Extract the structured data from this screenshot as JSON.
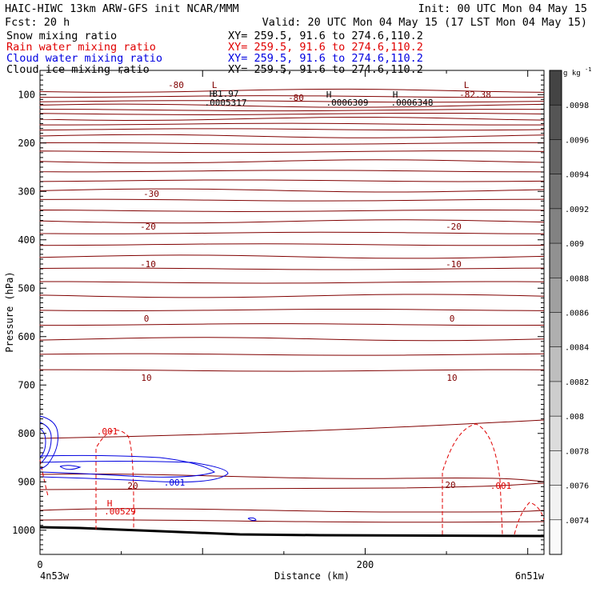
{
  "header": {
    "line1_left": "HAIC-HIWC 13km ARW-GFS init   NCAR/MMM",
    "line1_right": "Init: 00 UTC Mon 04 May 15",
    "line2_left": "Fcst:   20 h",
    "line2_right": "Valid: 20 UTC Mon 04 May 15 (17 LST Mon 04 May 15)",
    "fields": [
      {
        "name": "Snow mixing ratio",
        "xy": "XY= 259.5, 91.6 to 274.6,110.2",
        "color": "#000000"
      },
      {
        "name": "Rain water mixing ratio",
        "xy": "XY= 259.5, 91.6 to 274.6,110.2",
        "color": "#e00000"
      },
      {
        "name": "Cloud water mixing ratio",
        "xy": "XY= 259.5, 91.6 to 274.6,110.2",
        "color": "#0000e0"
      },
      {
        "name": "Cloud ice mixing ratio",
        "xy": "XY= 259.5, 91.6 to 274.6,110.2",
        "color": "#000000"
      }
    ]
  },
  "chart_data": {
    "type": "contour",
    "xlabel": "Distance (km)",
    "ylabel": "Pressure (hPa)",
    "x_ticks": [
      "0",
      "200"
    ],
    "y_ticks": [
      "100",
      "200",
      "300",
      "400",
      "500",
      "600",
      "700",
      "800",
      "900",
      "1000"
    ],
    "xlim": [
      0,
      310
    ],
    "ylim": [
      1050,
      50
    ],
    "left_location": "4n53w",
    "right_location": "6n51w",
    "colorbar": {
      "unit": "g kg",
      "unit_exp": "-1",
      "labels": [
        ".0098",
        ".0096",
        ".0094",
        ".0092",
        ".009",
        ".0088",
        ".0086",
        ".0084",
        ".0082",
        ".008",
        ".0078",
        ".0076",
        ".0074"
      ],
      "colors": [
        "#444444",
        "#555555",
        "#646464",
        "#737373",
        "#828282",
        "#919191",
        "#a0a0a0",
        "#afafaf",
        "#bebebe",
        "#cdcdcd",
        "#dcdcdc",
        "#e8e8e8",
        "#f2f2f2",
        "#fafafa"
      ]
    },
    "temperature_contours_labels": [
      "-80",
      "-80",
      "-30",
      "-20",
      "-20",
      "-10",
      "-10",
      "0",
      "0",
      "10",
      "10",
      "20",
      "20"
    ],
    "extrema_labels": [
      {
        "text": "L",
        "value": ""
      },
      {
        "text": "H",
        "value": "81.97"
      },
      {
        "text": "",
        "value": ".0005317"
      },
      {
        "text": "H",
        "value": ".0006309"
      },
      {
        "text": "H",
        "value": ".0006348"
      },
      {
        "text": "L",
        "value": "-82.38"
      },
      {
        "text": "H",
        "value": ".00529"
      }
    ],
    "moisture_labels": [
      ".001",
      ".001",
      ".001"
    ],
    "colors": {
      "temperature": "#800000",
      "rain": "#e00000",
      "cloud_water": "#0000e0",
      "terrain": "#000000"
    }
  }
}
